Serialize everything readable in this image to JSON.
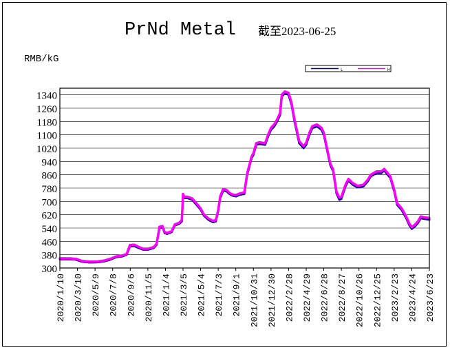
{
  "chart_data": {
    "type": "line",
    "title": "PrNd Metal",
    "subtitle": "截至2023-06-25",
    "ylabel": "RMB/kG",
    "ylim": [
      300,
      1380
    ],
    "yticks": [
      1340,
      1260,
      1180,
      1100,
      1020,
      940,
      860,
      780,
      700,
      620,
      540,
      460,
      380,
      300
    ],
    "xlim": [
      "2020-01-10",
      "2023-06-23"
    ],
    "xticks": [
      "2020/1/10",
      "2020/3/10",
      "2020/5/9",
      "2020/7/8",
      "2020/9/6",
      "2020/11/5",
      "2021/1/4",
      "2021/3/5",
      "2021/5/4",
      "2021/7/3",
      "2021/9/1",
      "2021/10/31",
      "2021/12/30",
      "2022/2/28",
      "2022/4/29",
      "2022/6/28",
      "2022/8/27",
      "2022/10/26",
      "2022/12/25",
      "2023/2/23",
      "2023/4/24",
      "2023/6/23"
    ],
    "legend": {
      "position": "top-right",
      "entries": [
        "L",
        "H"
      ]
    },
    "grid": {
      "horizontal": true,
      "vertical": false
    },
    "colors": {
      "L": "#000080",
      "H": "#ff00ff"
    },
    "series": [
      {
        "name": "L",
        "points": [
          [
            "2020-01-10",
            353
          ],
          [
            "2020-02-15",
            353
          ],
          [
            "2020-03-05",
            350
          ],
          [
            "2020-03-25",
            338
          ],
          [
            "2020-04-20",
            333
          ],
          [
            "2020-05-15",
            334
          ],
          [
            "2020-06-10",
            340
          ],
          [
            "2020-06-30",
            350
          ],
          [
            "2020-07-20",
            365
          ],
          [
            "2020-08-10",
            370
          ],
          [
            "2020-08-25",
            380
          ],
          [
            "2020-09-05",
            430
          ],
          [
            "2020-09-20",
            432
          ],
          [
            "2020-10-05",
            420
          ],
          [
            "2020-10-20",
            410
          ],
          [
            "2020-11-05",
            410
          ],
          [
            "2020-11-25",
            420
          ],
          [
            "2020-12-05",
            440
          ],
          [
            "2020-12-15",
            540
          ],
          [
            "2020-12-25",
            545
          ],
          [
            "2021-01-01",
            510
          ],
          [
            "2021-01-10",
            505
          ],
          [
            "2021-01-25",
            515
          ],
          [
            "2021-02-05",
            555
          ],
          [
            "2021-02-20",
            565
          ],
          [
            "2021-03-01",
            580
          ],
          [
            "2021-03-05",
            735
          ],
          [
            "2021-03-10",
            720
          ],
          [
            "2021-03-20",
            720
          ],
          [
            "2021-04-05",
            710
          ],
          [
            "2021-04-20",
            680
          ],
          [
            "2021-05-04",
            650
          ],
          [
            "2021-05-15",
            615
          ],
          [
            "2021-05-30",
            590
          ],
          [
            "2021-06-15",
            575
          ],
          [
            "2021-06-25",
            580
          ],
          [
            "2021-07-03",
            640
          ],
          [
            "2021-07-10",
            720
          ],
          [
            "2021-07-20",
            765
          ],
          [
            "2021-08-01",
            760
          ],
          [
            "2021-08-10",
            745
          ],
          [
            "2021-08-20",
            735
          ],
          [
            "2021-09-01",
            730
          ],
          [
            "2021-09-15",
            740
          ],
          [
            "2021-09-30",
            745
          ],
          [
            "2021-10-10",
            860
          ],
          [
            "2021-10-25",
            960
          ],
          [
            "2021-10-31",
            980
          ],
          [
            "2021-11-10",
            1040
          ],
          [
            "2021-11-20",
            1045
          ],
          [
            "2021-12-10",
            1040
          ],
          [
            "2021-12-20",
            1090
          ],
          [
            "2021-12-30",
            1130
          ],
          [
            "2022-01-10",
            1150
          ],
          [
            "2022-01-20",
            1180
          ],
          [
            "2022-01-30",
            1220
          ],
          [
            "2022-02-05",
            1330
          ],
          [
            "2022-02-15",
            1350
          ],
          [
            "2022-02-28",
            1340
          ],
          [
            "2022-03-10",
            1280
          ],
          [
            "2022-03-20",
            1180
          ],
          [
            "2022-04-05",
            1050
          ],
          [
            "2022-04-20",
            1020
          ],
          [
            "2022-04-29",
            1040
          ],
          [
            "2022-05-10",
            1100
          ],
          [
            "2022-05-20",
            1140
          ],
          [
            "2022-06-05",
            1150
          ],
          [
            "2022-06-20",
            1130
          ],
          [
            "2022-06-28",
            1100
          ],
          [
            "2022-07-10",
            1000
          ],
          [
            "2022-07-20",
            920
          ],
          [
            "2022-07-30",
            880
          ],
          [
            "2022-08-10",
            750
          ],
          [
            "2022-08-20",
            710
          ],
          [
            "2022-08-27",
            715
          ],
          [
            "2022-09-10",
            790
          ],
          [
            "2022-09-20",
            825
          ],
          [
            "2022-10-05",
            800
          ],
          [
            "2022-10-20",
            785
          ],
          [
            "2022-10-26",
            785
          ],
          [
            "2022-11-10",
            790
          ],
          [
            "2022-11-25",
            820
          ],
          [
            "2022-12-05",
            850
          ],
          [
            "2022-12-25",
            870
          ],
          [
            "2023-01-10",
            870
          ],
          [
            "2023-01-20",
            885
          ],
          [
            "2023-02-01",
            860
          ],
          [
            "2023-02-10",
            840
          ],
          [
            "2023-02-23",
            760
          ],
          [
            "2023-03-05",
            680
          ],
          [
            "2023-03-20",
            650
          ],
          [
            "2023-04-05",
            600
          ],
          [
            "2023-04-15",
            560
          ],
          [
            "2023-04-24",
            535
          ],
          [
            "2023-05-05",
            550
          ],
          [
            "2023-05-15",
            570
          ],
          [
            "2023-05-25",
            600
          ],
          [
            "2023-06-05",
            595
          ],
          [
            "2023-06-23",
            590
          ]
        ]
      },
      {
        "name": "H",
        "points": [
          [
            "2020-01-10",
            358
          ],
          [
            "2020-02-15",
            358
          ],
          [
            "2020-03-05",
            355
          ],
          [
            "2020-03-25",
            343
          ],
          [
            "2020-04-20",
            338
          ],
          [
            "2020-05-15",
            339
          ],
          [
            "2020-06-10",
            345
          ],
          [
            "2020-06-30",
            355
          ],
          [
            "2020-07-20",
            370
          ],
          [
            "2020-08-10",
            375
          ],
          [
            "2020-08-25",
            385
          ],
          [
            "2020-09-05",
            438
          ],
          [
            "2020-09-20",
            440
          ],
          [
            "2020-10-05",
            427
          ],
          [
            "2020-10-20",
            416
          ],
          [
            "2020-11-05",
            416
          ],
          [
            "2020-11-25",
            426
          ],
          [
            "2020-12-05",
            446
          ],
          [
            "2020-12-15",
            548
          ],
          [
            "2020-12-25",
            552
          ],
          [
            "2021-01-01",
            516
          ],
          [
            "2021-01-10",
            511
          ],
          [
            "2021-01-25",
            521
          ],
          [
            "2021-02-05",
            562
          ],
          [
            "2021-02-20",
            572
          ],
          [
            "2021-03-01",
            588
          ],
          [
            "2021-03-05",
            745
          ],
          [
            "2021-03-10",
            728
          ],
          [
            "2021-03-20",
            728
          ],
          [
            "2021-04-05",
            718
          ],
          [
            "2021-04-20",
            688
          ],
          [
            "2021-05-04",
            658
          ],
          [
            "2021-05-15",
            622
          ],
          [
            "2021-05-30",
            598
          ],
          [
            "2021-06-15",
            583
          ],
          [
            "2021-06-25",
            588
          ],
          [
            "2021-07-03",
            648
          ],
          [
            "2021-07-10",
            730
          ],
          [
            "2021-07-20",
            775
          ],
          [
            "2021-08-01",
            768
          ],
          [
            "2021-08-10",
            752
          ],
          [
            "2021-08-20",
            742
          ],
          [
            "2021-09-01",
            738
          ],
          [
            "2021-09-15",
            748
          ],
          [
            "2021-09-30",
            753
          ],
          [
            "2021-10-10",
            870
          ],
          [
            "2021-10-25",
            970
          ],
          [
            "2021-10-31",
            990
          ],
          [
            "2021-11-10",
            1050
          ],
          [
            "2021-11-20",
            1055
          ],
          [
            "2021-12-10",
            1050
          ],
          [
            "2021-12-20",
            1100
          ],
          [
            "2021-12-30",
            1142
          ],
          [
            "2022-01-10",
            1162
          ],
          [
            "2022-01-20",
            1192
          ],
          [
            "2022-01-30",
            1232
          ],
          [
            "2022-02-05",
            1342
          ],
          [
            "2022-02-15",
            1360
          ],
          [
            "2022-02-28",
            1352
          ],
          [
            "2022-03-10",
            1292
          ],
          [
            "2022-03-20",
            1192
          ],
          [
            "2022-04-05",
            1062
          ],
          [
            "2022-04-20",
            1032
          ],
          [
            "2022-04-29",
            1052
          ],
          [
            "2022-05-10",
            1112
          ],
          [
            "2022-05-20",
            1152
          ],
          [
            "2022-06-05",
            1162
          ],
          [
            "2022-06-20",
            1142
          ],
          [
            "2022-06-28",
            1112
          ],
          [
            "2022-07-10",
            1010
          ],
          [
            "2022-07-20",
            930
          ],
          [
            "2022-07-30",
            890
          ],
          [
            "2022-08-10",
            760
          ],
          [
            "2022-08-20",
            722
          ],
          [
            "2022-08-27",
            727
          ],
          [
            "2022-09-10",
            800
          ],
          [
            "2022-09-20",
            835
          ],
          [
            "2022-10-05",
            810
          ],
          [
            "2022-10-20",
            795
          ],
          [
            "2022-10-26",
            795
          ],
          [
            "2022-11-10",
            800
          ],
          [
            "2022-11-25",
            830
          ],
          [
            "2022-12-05",
            860
          ],
          [
            "2022-12-25",
            880
          ],
          [
            "2023-01-10",
            880
          ],
          [
            "2023-01-20",
            895
          ],
          [
            "2023-02-01",
            870
          ],
          [
            "2023-02-10",
            850
          ],
          [
            "2023-02-23",
            770
          ],
          [
            "2023-03-05",
            690
          ],
          [
            "2023-03-20",
            660
          ],
          [
            "2023-04-05",
            610
          ],
          [
            "2023-04-15",
            570
          ],
          [
            "2023-04-24",
            545
          ],
          [
            "2023-05-05",
            560
          ],
          [
            "2023-05-15",
            580
          ],
          [
            "2023-05-25",
            610
          ],
          [
            "2023-06-05",
            605
          ],
          [
            "2023-06-23",
            600
          ]
        ]
      }
    ]
  }
}
